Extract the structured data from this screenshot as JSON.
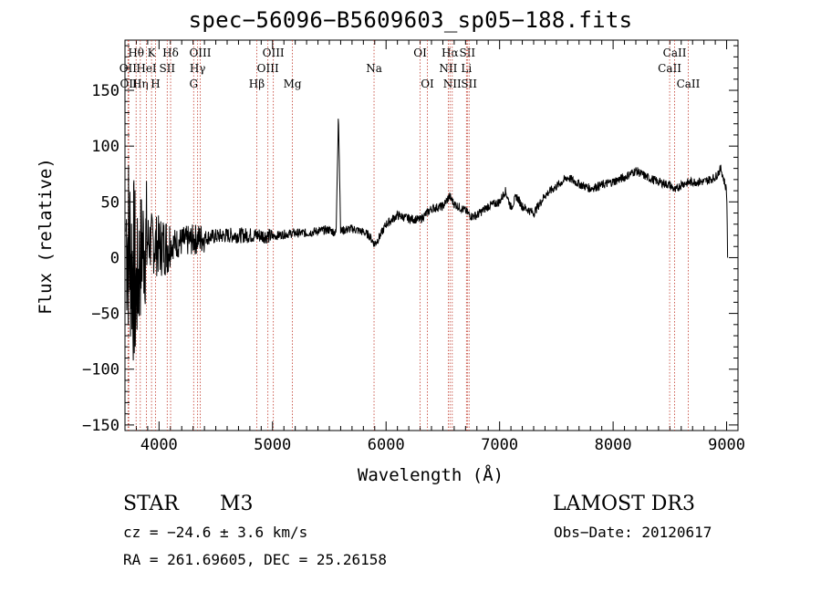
{
  "chart_data": {
    "type": "line",
    "title": "spec−56096−B5609603_sp05−188.fits",
    "xlabel": "Wavelength (Å)",
    "ylabel": "Flux (relative)",
    "xlim": [
      3700,
      9100
    ],
    "ylim": [
      -155,
      195
    ],
    "x_ticks": [
      4000,
      5000,
      6000,
      7000,
      8000,
      9000
    ],
    "y_ticks": [
      -150,
      -100,
      -50,
      0,
      50,
      100,
      150
    ],
    "y_tick_labels": [
      "−150",
      "−100",
      "−50",
      "0",
      "50",
      "100",
      "150"
    ],
    "line_color": "#000000",
    "marker_color": "#c0392b",
    "series": [
      {
        "name": "flux",
        "points": [
          [
            3700,
            30
          ],
          [
            3750,
            5
          ],
          [
            3800,
            -30
          ],
          [
            3850,
            10
          ],
          [
            3900,
            15
          ],
          [
            4000,
            10
          ],
          [
            4100,
            12
          ],
          [
            4200,
            14
          ],
          [
            4300,
            16
          ],
          [
            4400,
            18
          ],
          [
            4500,
            19
          ],
          [
            4600,
            20
          ],
          [
            4700,
            20
          ],
          [
            4800,
            20
          ],
          [
            4900,
            20
          ],
          [
            5000,
            19
          ],
          [
            5100,
            21
          ],
          [
            5200,
            22
          ],
          [
            5300,
            22
          ],
          [
            5400,
            24
          ],
          [
            5500,
            25
          ],
          [
            5560,
            22
          ],
          [
            5580,
            130
          ],
          [
            5600,
            24
          ],
          [
            5700,
            26
          ],
          [
            5800,
            23
          ],
          [
            5850,
            20
          ],
          [
            5900,
            12
          ],
          [
            5950,
            20
          ],
          [
            6000,
            30
          ],
          [
            6100,
            38
          ],
          [
            6200,
            35
          ],
          [
            6300,
            34
          ],
          [
            6400,
            44
          ],
          [
            6500,
            46
          ],
          [
            6560,
            55
          ],
          [
            6600,
            48
          ],
          [
            6700,
            42
          ],
          [
            6750,
            37
          ],
          [
            6800,
            38
          ],
          [
            6900,
            46
          ],
          [
            7000,
            50
          ],
          [
            7050,
            60
          ],
          [
            7100,
            45
          ],
          [
            7150,
            55
          ],
          [
            7200,
            46
          ],
          [
            7300,
            40
          ],
          [
            7400,
            56
          ],
          [
            7500,
            64
          ],
          [
            7600,
            72
          ],
          [
            7700,
            66
          ],
          [
            7800,
            62
          ],
          [
            7900,
            65
          ],
          [
            8000,
            68
          ],
          [
            8100,
            72
          ],
          [
            8200,
            78
          ],
          [
            8300,
            72
          ],
          [
            8400,
            68
          ],
          [
            8500,
            65
          ],
          [
            8550,
            60
          ],
          [
            8600,
            66
          ],
          [
            8700,
            68
          ],
          [
            8800,
            68
          ],
          [
            8900,
            72
          ],
          [
            8950,
            80
          ],
          [
            9000,
            60
          ],
          [
            9010,
            0
          ]
        ]
      }
    ],
    "line_markers": [
      {
        "wavelength": 3727,
        "label": "OII",
        "row": 2
      },
      {
        "wavelength": 3733,
        "label": "OII",
        "row": 3
      },
      {
        "wavelength": 3798,
        "label": "Hθ",
        "row": 1
      },
      {
        "wavelength": 3835,
        "label": "Hη",
        "row": 3
      },
      {
        "wavelength": 3889,
        "label": "HeI",
        "row": 2
      },
      {
        "wavelength": 3934,
        "label": "K",
        "row": 1
      },
      {
        "wavelength": 3969,
        "label": "H",
        "row": 3
      },
      {
        "wavelength": 4072,
        "label": "SII",
        "row": 2
      },
      {
        "wavelength": 4102,
        "label": "Hδ",
        "row": 1
      },
      {
        "wavelength": 4305,
        "label": "G",
        "row": 3
      },
      {
        "wavelength": 4340,
        "label": "Hγ",
        "row": 2
      },
      {
        "wavelength": 4363,
        "label": "OIII",
        "row": 1
      },
      {
        "wavelength": 4861,
        "label": "Hβ",
        "row": 3
      },
      {
        "wavelength": 4959,
        "label": "OIII",
        "row": 2
      },
      {
        "wavelength": 5007,
        "label": "OIII",
        "row": 1
      },
      {
        "wavelength": 5175,
        "label": "Mg",
        "row": 3
      },
      {
        "wavelength": 5894,
        "label": "Na",
        "row": 2
      },
      {
        "wavelength": 6300,
        "label": "OI",
        "row": 1
      },
      {
        "wavelength": 6364,
        "label": "OI",
        "row": 3
      },
      {
        "wavelength": 6548,
        "label": "NII",
        "row": 2
      },
      {
        "wavelength": 6563,
        "label": "Hα",
        "row": 1
      },
      {
        "wavelength": 6583,
        "label": "NII",
        "row": 3
      },
      {
        "wavelength": 6708,
        "label": "Li",
        "row": 2
      },
      {
        "wavelength": 6716,
        "label": "SII",
        "row": 1
      },
      {
        "wavelength": 6731,
        "label": "SII",
        "row": 3
      },
      {
        "wavelength": 8498,
        "label": "CaII",
        "row": 2
      },
      {
        "wavelength": 8542,
        "label": "CaII",
        "row": 1
      },
      {
        "wavelength": 8662,
        "label": "CaII",
        "row": 3
      }
    ]
  },
  "info": {
    "object_class": "STAR",
    "subclass": "M3",
    "survey": "LAMOST DR3",
    "cz": "cz = −24.6 ± 3.6 km/s",
    "obs_date": "Obs−Date: 20120617",
    "coords": "RA = 261.69605, DEC =  25.26158"
  }
}
